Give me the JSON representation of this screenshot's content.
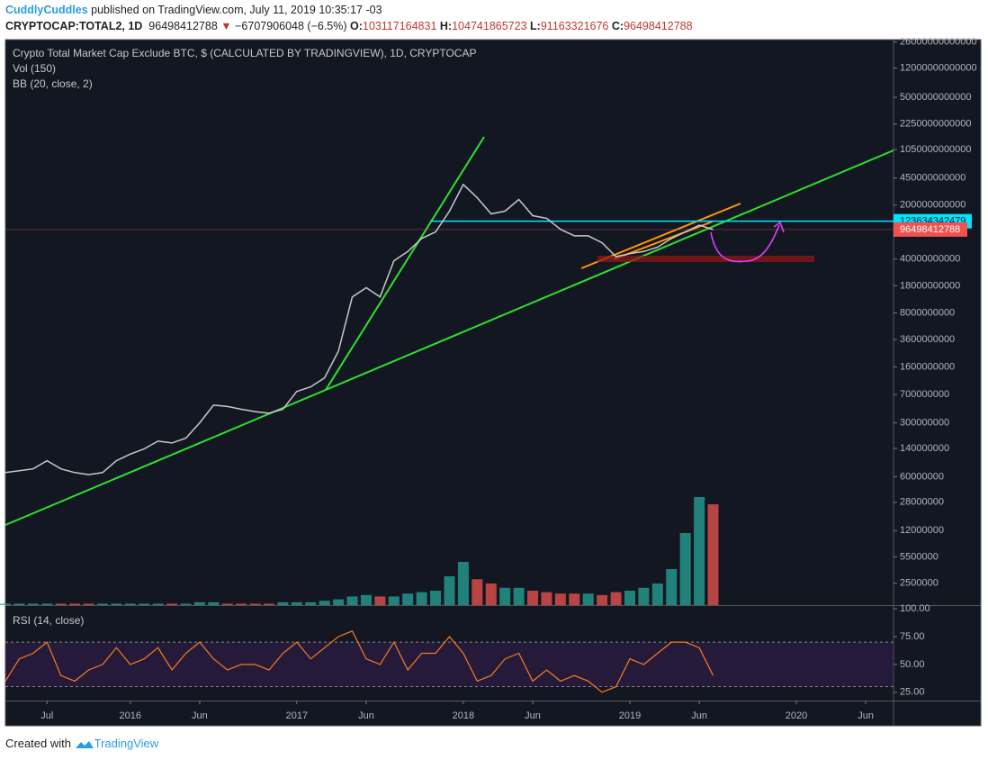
{
  "header": {
    "user": "CuddlyCuddles",
    "published": "published on TradingView.com, July 11, 2019 10:35:17 -03",
    "symbol": "CRYPTOCAP:TOTAL2, 1D",
    "arrow": "▼",
    "change": "−6707906048 (−6.5%)",
    "ohlc": [
      {
        "label": "O:",
        "value": 103117164831
      },
      {
        "label": "H:",
        "value": 104741865723
      },
      {
        "label": "L:",
        "value": 91163321676
      }
    ],
    "close_label": "C:"
  },
  "chart_data": {
    "type": "line",
    "title": "Crypto Total Market Cap Exclude BTC, $ (CALCULATED BY TRADINGVIEW), 1D, CRYPTOCAP",
    "indicators": [
      "Vol (150)",
      "BB (20, close, 2)"
    ],
    "x": [
      "2015-04",
      "2015-05",
      "2015-06",
      "2015-07",
      "2015-08",
      "2015-09",
      "2015-10",
      "2015-11",
      "2015-12",
      "2016-01",
      "2016-02",
      "2016-03",
      "2016-04",
      "2016-05",
      "2016-06",
      "2016-07",
      "2016-08",
      "2016-09",
      "2016-10",
      "2016-11",
      "2016-12",
      "2017-01",
      "2017-02",
      "2017-03",
      "2017-04",
      "2017-05",
      "2017-06",
      "2017-07",
      "2017-08",
      "2017-09",
      "2017-10",
      "2017-11",
      "2017-12",
      "2018-01",
      "2018-02",
      "2018-03",
      "2018-04",
      "2018-05",
      "2018-06",
      "2018-07",
      "2018-08",
      "2018-09",
      "2018-10",
      "2018-11",
      "2018-12",
      "2019-01",
      "2019-02",
      "2019-03",
      "2019-04",
      "2019-05",
      "2019-06",
      "2019-07"
    ],
    "values": [
      68000000,
      72000000,
      76000000,
      97000000,
      76000000,
      68000000,
      64000000,
      68000000,
      97000000,
      118000000,
      138000000,
      174000000,
      165000000,
      190000000,
      300000000,
      510000000,
      490000000,
      450000000,
      420000000,
      400000000,
      450000000,
      770000000,
      880000000,
      1150000000,
      2550000000,
      12900000000,
      17000000000,
      12900000000,
      38000000000,
      50000000000,
      74000000000,
      90000000000,
      167000000000,
      370000000000,
      250000000000,
      154000000000,
      167000000000,
      237000000000,
      146000000000,
      135000000000,
      97000000000,
      80000000000,
      80000000000,
      65000000000,
      43000000000,
      47000000000,
      50000000000,
      57000000000,
      74000000000,
      90000000000,
      110000000000,
      96498412788
    ],
    "color": "#c8c8c8",
    "last_color": "#ef5350",
    "log_scale": true,
    "ylim": [
      1300000,
      28000000000000
    ],
    "yticks": [
      26000000000000,
      12000000000000,
      5000000000000,
      2250000000000,
      1050000000000,
      450000000000,
      200000000000,
      40000000000,
      18000000000,
      8000000000,
      3600000000,
      1600000000,
      700000000,
      300000000,
      140000000,
      60000000,
      28000000,
      12000000,
      5500000,
      2500000
    ],
    "xlim": [
      "2015-04",
      "2020-08"
    ],
    "xticks": [
      {
        "value": "2015-07",
        "label": "Jul"
      },
      {
        "value": "2016-01",
        "label": "2016"
      },
      {
        "value": "2016-06",
        "label": "Jun"
      },
      {
        "value": "2017-01",
        "label": "2017"
      },
      {
        "value": "2017-06",
        "label": "Jun"
      },
      {
        "value": "2018-01",
        "label": "2018"
      },
      {
        "value": "2018-06",
        "label": "Jun"
      },
      {
        "value": "2019-01",
        "label": "2019"
      },
      {
        "value": "2019-06",
        "label": "Jun"
      },
      {
        "value": "2020-01",
        "label": "2020"
      },
      {
        "value": "2020-06",
        "label": "Jun"
      }
    ],
    "hline": {
      "value": 123634342479,
      "color": "#00e5ff"
    },
    "volume": {
      "values": [
        1,
        1,
        1,
        1,
        1,
        1,
        1,
        1,
        1,
        1,
        1,
        1,
        1,
        1,
        2,
        2,
        1,
        1,
        1,
        1,
        2,
        2,
        2,
        3,
        4,
        6,
        7,
        6,
        6,
        8,
        9,
        10,
        20,
        30,
        18,
        15,
        12,
        12,
        10,
        9,
        8,
        8,
        8,
        7,
        9,
        10,
        12,
        15,
        25,
        50,
        75,
        70
      ],
      "ylim": [
        0,
        100
      ],
      "up_color": "#26a69a",
      "down_color": "#ef5350"
    },
    "rsi": {
      "title": "RSI (14, close)",
      "values": [
        35,
        55,
        60,
        70,
        40,
        35,
        45,
        50,
        65,
        50,
        55,
        65,
        45,
        60,
        70,
        55,
        45,
        50,
        50,
        45,
        60,
        70,
        55,
        65,
        75,
        80,
        55,
        50,
        70,
        45,
        60,
        60,
        75,
        60,
        35,
        40,
        55,
        60,
        35,
        45,
        35,
        40,
        35,
        25,
        30,
        55,
        50,
        60,
        70,
        70,
        65,
        40
      ],
      "ylim": [
        17.5,
        102.5
      ],
      "yticks": [
        {
          "value": 100,
          "label": "100.00"
        },
        {
          "value": 75,
          "label": "75.00"
        },
        {
          "value": 50,
          "label": "50.00"
        },
        {
          "value": 25,
          "label": "25.00"
        }
      ],
      "band": [
        30,
        70
      ],
      "color": "#f57c1f"
    }
  },
  "footer": {
    "created": "Created with",
    "brand": "TradingView"
  }
}
